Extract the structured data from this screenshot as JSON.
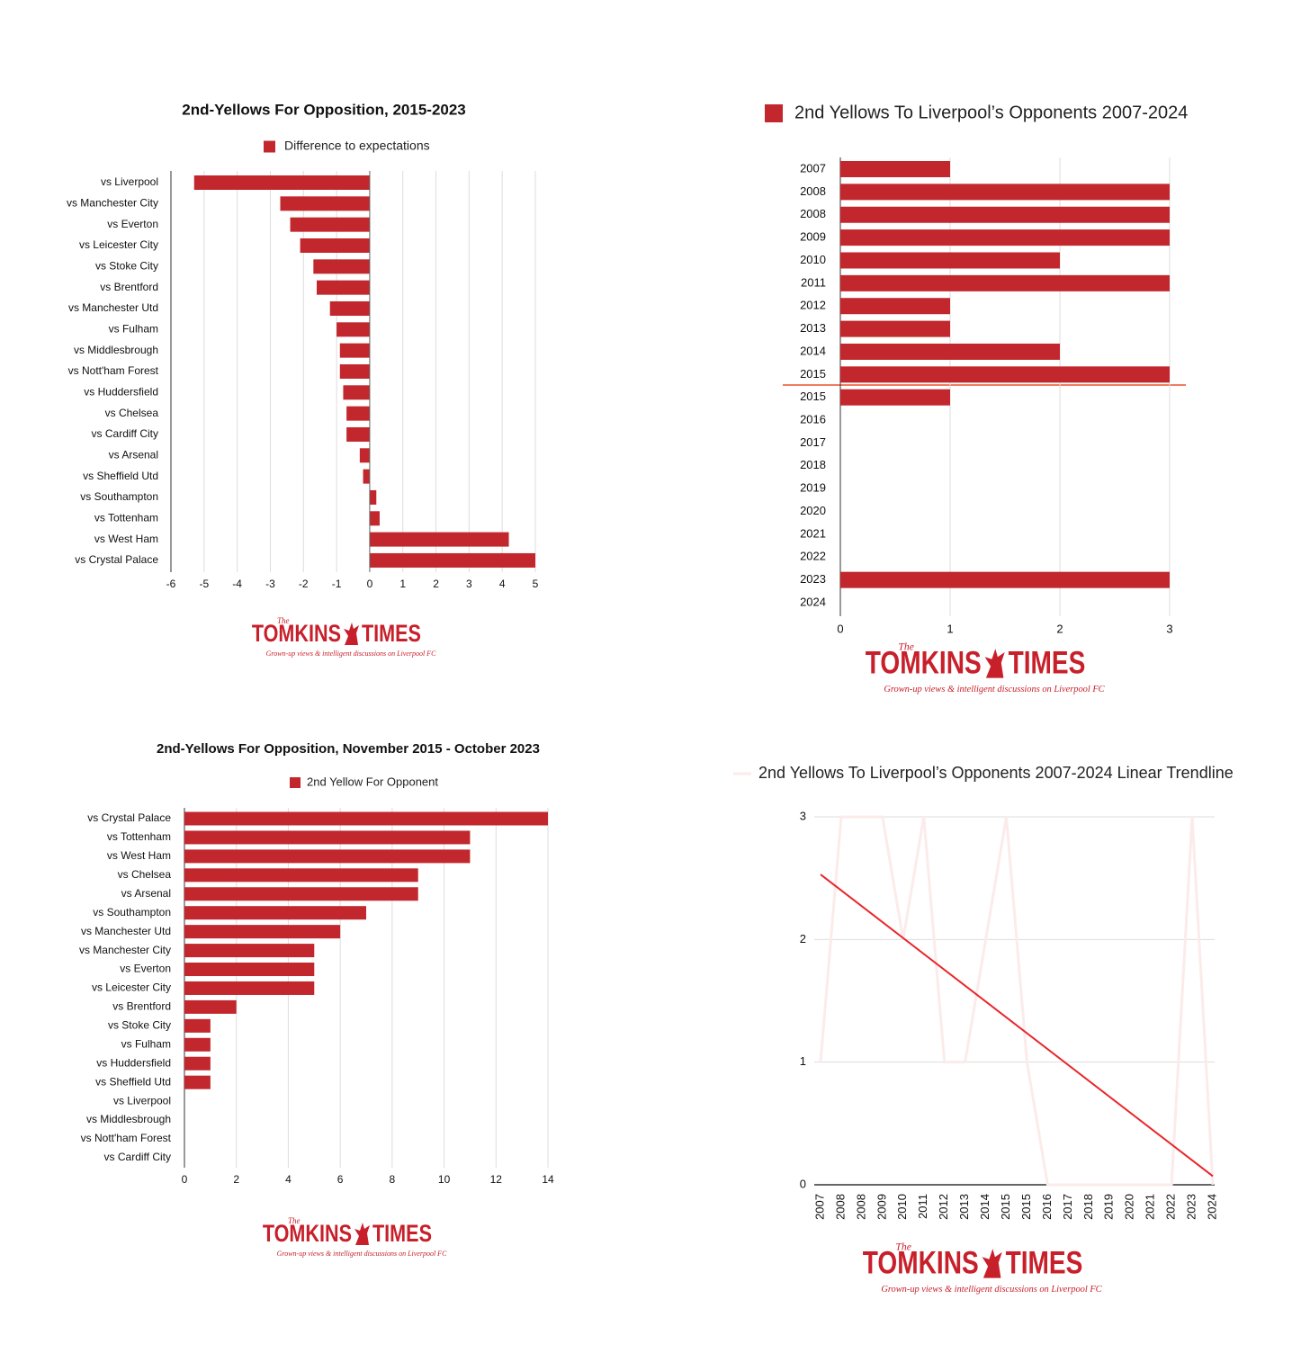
{
  "logo": {
    "prefix": "The",
    "left": "TOMKINS",
    "right": "TIMES",
    "tagline": "Grown-up views & intelligent discussions on Liverpool FC"
  },
  "chart_data": [
    {
      "type": "bar",
      "orientation": "horizontal",
      "title": "2nd-Yellows For Opposition, 2015-2023",
      "categories": [
        "vs Liverpool",
        "vs Manchester City",
        "vs Everton",
        "vs Leicester City",
        "vs Stoke City",
        "vs Brentford",
        "vs Manchester Utd",
        "vs Fulham",
        "vs Middlesbrough",
        "vs Nott'ham Forest",
        "vs Huddersfield",
        "vs Chelsea",
        "vs Cardiff City",
        "vs Arsenal",
        "vs Sheffield Utd",
        "vs Southampton",
        "vs Tottenham",
        "vs West Ham",
        "vs Crystal Palace"
      ],
      "series": [
        {
          "name": "Difference to expectations",
          "color": "#c1272d",
          "values": [
            -5.3,
            -2.7,
            -2.4,
            -2.1,
            -1.7,
            -1.6,
            -1.2,
            -1.0,
            -0.9,
            -0.9,
            -0.8,
            -0.7,
            -0.7,
            -0.3,
            -0.2,
            0.2,
            0.3,
            4.2,
            5.0
          ]
        }
      ],
      "xlim": [
        -6,
        5
      ],
      "xticks": [
        -6,
        -5,
        -4,
        -3,
        -2,
        -1,
        0,
        1,
        2,
        3,
        4,
        5
      ],
      "grid": true,
      "legend": "top"
    },
    {
      "type": "bar",
      "orientation": "horizontal",
      "categories": [
        "2007",
        "2008",
        "2008",
        "2009",
        "2010",
        "2011",
        "2012",
        "2013",
        "2014",
        "2015",
        "2015",
        "2016",
        "2017",
        "2018",
        "2019",
        "2020",
        "2021",
        "2022",
        "2023",
        "2024"
      ],
      "series": [
        {
          "name": "2nd Yellows To Liverpool’s Opponents 2007-2024",
          "color": "#c1272d",
          "values": [
            1,
            3,
            3,
            3,
            2,
            3,
            1,
            1,
            2,
            3,
            1,
            0,
            0,
            0,
            0,
            0,
            0,
            0,
            3,
            0
          ]
        }
      ],
      "xlim": [
        0,
        3.15
      ],
      "xticks": [
        0,
        1,
        2,
        3
      ],
      "grid": true,
      "legend": "top"
    },
    {
      "type": "bar",
      "orientation": "horizontal",
      "title": "2nd-Yellows For Opposition, November 2015 - October 2023",
      "categories": [
        "vs Crystal Palace",
        "vs Tottenham",
        "vs West Ham",
        "vs Chelsea",
        "vs Arsenal",
        "vs Southampton",
        "vs Manchester Utd",
        "vs Manchester City",
        "vs Everton",
        "vs Leicester City",
        "vs Brentford",
        "vs Stoke City",
        "vs Fulham",
        "vs Huddersfield",
        "vs Sheffield Utd",
        "vs Liverpool",
        "vs Middlesbrough",
        "vs Nott'ham Forest",
        "vs Cardiff City"
      ],
      "series": [
        {
          "name": "2nd Yellow For Opponent",
          "color": "#c1272d",
          "values": [
            14,
            11,
            11,
            9,
            9,
            7,
            6,
            5,
            5,
            5,
            2,
            1,
            1,
            1,
            1,
            0,
            0,
            0,
            0
          ]
        }
      ],
      "xlim": [
        0,
        14
      ],
      "xticks": [
        0,
        2,
        4,
        6,
        8,
        10,
        12,
        14
      ],
      "grid": true,
      "legend": "top"
    },
    {
      "type": "line",
      "categories": [
        "2007",
        "2008",
        "2008",
        "2009",
        "2010",
        "2011",
        "2012",
        "2013",
        "2014",
        "2015",
        "2015",
        "2016",
        "2017",
        "2018",
        "2019",
        "2020",
        "2021",
        "2022",
        "2023",
        "2024"
      ],
      "series": [
        {
          "name": "2nd Yellows To Liverpool’s Opponents 2007-2024 Linear Trendline",
          "color": "#fcebeb",
          "values": [
            1,
            3,
            3,
            3,
            2,
            3,
            1,
            1,
            2,
            3,
            1,
            0,
            0,
            0,
            0,
            0,
            0,
            0,
            3,
            0
          ]
        }
      ],
      "trendline": {
        "color": "#e8262b",
        "values": [
          2.53,
          0.07
        ]
      },
      "ylim": [
        0,
        3
      ],
      "yticks": [
        0,
        1,
        2,
        3
      ],
      "grid": true,
      "legend": "top"
    }
  ]
}
